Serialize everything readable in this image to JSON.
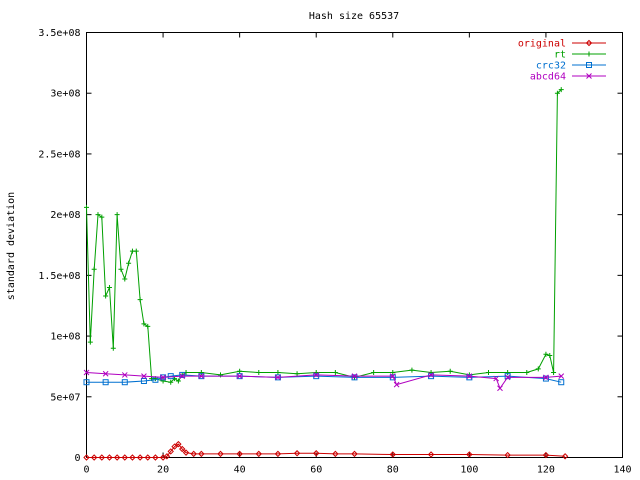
{
  "chart_data": {
    "type": "line",
    "title": "Hash size 65537",
    "xlabel": "",
    "ylabel": "standard deviation",
    "xlim": [
      0,
      140
    ],
    "ylim": [
      0,
      350000000
    ],
    "xticks": [
      0,
      20,
      40,
      60,
      80,
      100,
      120,
      140
    ],
    "xtick_labels": [
      "0",
      "20",
      "40",
      "60",
      "80",
      "100",
      "120",
      "140"
    ],
    "yticks": [
      0,
      50000000,
      100000000,
      150000000,
      200000000,
      250000000,
      300000000,
      350000000
    ],
    "ytick_labels": [
      "0",
      "5e+07",
      "1e+08",
      "1.5e+08",
      "2e+08",
      "2.5e+08",
      "3e+08",
      "3.5e+08"
    ],
    "grid": false,
    "legend_position": "top-right",
    "series": [
      {
        "name": "original",
        "color": "#cc0000",
        "marker": "diamond",
        "x": [
          0,
          2,
          4,
          6,
          8,
          10,
          12,
          14,
          16,
          18,
          20,
          21,
          22,
          23,
          24,
          25,
          26,
          28,
          30,
          35,
          40,
          45,
          50,
          55,
          60,
          65,
          70,
          80,
          90,
          100,
          110,
          120,
          125
        ],
        "y": [
          0,
          0,
          0,
          0,
          0,
          0,
          0,
          0,
          0,
          0,
          0,
          1000000,
          5000000,
          9000000,
          11000000,
          7000000,
          4000000,
          3000000,
          3000000,
          3000000,
          3000000,
          3000000,
          3000000,
          3500000,
          3500000,
          3000000,
          3000000,
          2500000,
          2500000,
          2500000,
          2000000,
          2000000,
          1000000
        ]
      },
      {
        "name": "rt",
        "color": "#00a000",
        "marker": "plus",
        "x": [
          0,
          1,
          2,
          3,
          4,
          5,
          6,
          7,
          8,
          9,
          10,
          11,
          12,
          13,
          14,
          15,
          16,
          17,
          18,
          20,
          22,
          23,
          24,
          25,
          26,
          30,
          35,
          40,
          45,
          50,
          55,
          60,
          65,
          70,
          75,
          80,
          85,
          90,
          95,
          100,
          105,
          110,
          115,
          118,
          120,
          121,
          122,
          123,
          124
        ],
        "y": [
          206000000,
          95000000,
          155000000,
          200000000,
          198000000,
          133000000,
          140000000,
          90000000,
          200000000,
          155000000,
          147000000,
          160000000,
          170000000,
          170000000,
          130000000,
          110000000,
          108000000,
          65000000,
          65000000,
          63000000,
          62000000,
          65000000,
          63000000,
          68000000,
          70000000,
          70000000,
          68000000,
          71000000,
          70000000,
          70000000,
          69000000,
          70000000,
          70000000,
          66000000,
          70000000,
          70000000,
          72000000,
          70000000,
          71000000,
          68000000,
          70000000,
          70000000,
          70000000,
          73000000,
          85000000,
          84000000,
          70000000,
          300000000,
          303000000
        ]
      },
      {
        "name": "crc32",
        "color": "#0070d0",
        "marker": "square",
        "x": [
          0,
          5,
          10,
          15,
          18,
          20,
          22,
          25,
          30,
          40,
          50,
          60,
          70,
          80,
          90,
          100,
          110,
          120,
          124
        ],
        "y": [
          62000000,
          62000000,
          62000000,
          63000000,
          64000000,
          66000000,
          67000000,
          68000000,
          67000000,
          67000000,
          66000000,
          67000000,
          66000000,
          66000000,
          67000000,
          66000000,
          67000000,
          65000000,
          62000000
        ]
      },
      {
        "name": "abcd64",
        "color": "#b000c0",
        "marker": "cross",
        "x": [
          0,
          5,
          10,
          15,
          20,
          25,
          30,
          40,
          50,
          60,
          70,
          80,
          81,
          90,
          100,
          107,
          108,
          110,
          120,
          124
        ],
        "y": [
          70000000,
          69000000,
          68000000,
          67000000,
          66000000,
          67000000,
          67000000,
          67000000,
          66000000,
          68000000,
          67000000,
          67000000,
          60000000,
          68000000,
          67000000,
          65000000,
          57000000,
          66000000,
          66000000,
          67000000
        ]
      }
    ]
  }
}
